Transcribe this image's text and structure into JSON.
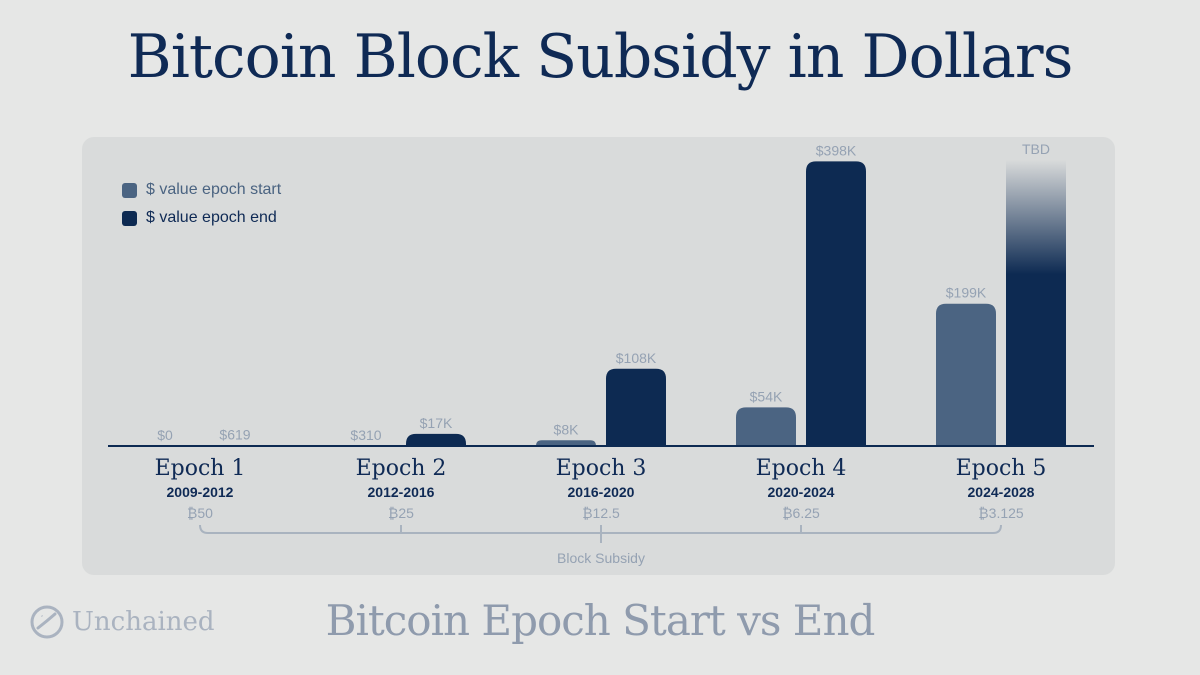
{
  "title": "Bitcoin Block Subsidy in Dollars",
  "subtitle": "Bitcoin Epoch Start vs End",
  "logo": {
    "text": "Unchained",
    "icon": "unchained-logo-icon"
  },
  "colors": {
    "start": "#4b6482",
    "end": "#0d2a52",
    "background": "#e6e7e6",
    "panel": "#d9dbdb",
    "muted": "#95a2b3"
  },
  "chart_data": {
    "type": "bar",
    "categories": [
      "Epoch 1",
      "Epoch 2",
      "Epoch 3",
      "Epoch 4",
      "Epoch 5"
    ],
    "years": [
      "2009-2012",
      "2012-2016",
      "2016-2020",
      "2020-2024",
      "2024-2028"
    ],
    "subsidies": [
      "₿50",
      "₿25",
      "₿12.5",
      "₿6.25",
      "₿3.125"
    ],
    "series": [
      {
        "name": "$ value epoch start",
        "values": [
          0,
          310,
          8000,
          54000,
          199000
        ],
        "labels": [
          "$0",
          "$310",
          "$8K",
          "$54K",
          "$199K"
        ]
      },
      {
        "name": "$ value epoch end",
        "values": [
          619,
          17000,
          108000,
          398000,
          null
        ],
        "labels": [
          "$619",
          "$17K",
          "$108K",
          "$398K",
          "TBD"
        ]
      }
    ],
    "subsidy_caption": "Block Subsidy",
    "legend_position": "top-left",
    "ylim": [
      0,
      400000
    ],
    "grid": false
  }
}
